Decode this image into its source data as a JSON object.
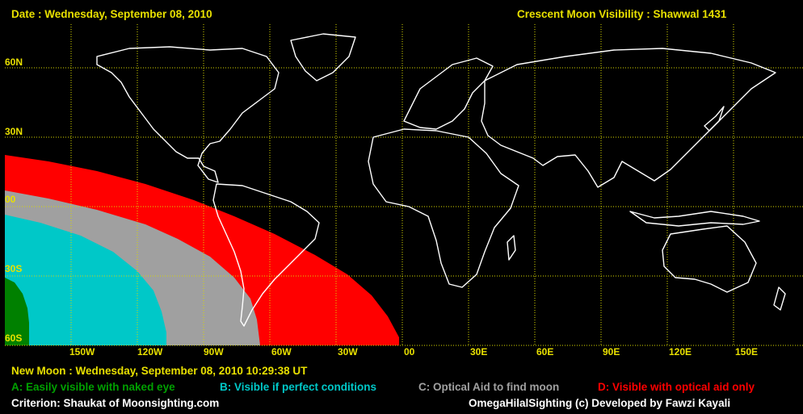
{
  "header": {
    "date_text": "Date : Wednesday, September 08, 2010",
    "title": "Crescent Moon Visibility : Shawwal  1431"
  },
  "latitude_labels": [
    "60N",
    "30N",
    "00",
    "30S",
    "60S"
  ],
  "longitude_labels": [
    "150W",
    "120W",
    "90W",
    "60W",
    "30W",
    "00",
    "30E",
    "60E",
    "90E",
    "120E",
    "150E"
  ],
  "footer": {
    "new_moon": "New Moon : Wednesday, September 08, 2010  10:29:38  UT",
    "criterion": "Criterion: Shaukat of Moonsighting.com",
    "credit": "OmegaHilalSighting  (c)  Developed by Fawzi Kayali"
  },
  "legend": [
    {
      "label": "A: Easily visible with naked eye",
      "color": "#008000"
    },
    {
      "label": "B: Visible if perfect conditions",
      "color": "#00c8c8"
    },
    {
      "label": "C: Optical Aid to find moon",
      "color": "#a0a0a0"
    },
    {
      "label": "D: Visible with optical aid only",
      "color": "#ff0000"
    }
  ],
  "colors": {
    "grid": "#d8d800",
    "coast": "#ffffff",
    "text": "#e8e000"
  }
}
